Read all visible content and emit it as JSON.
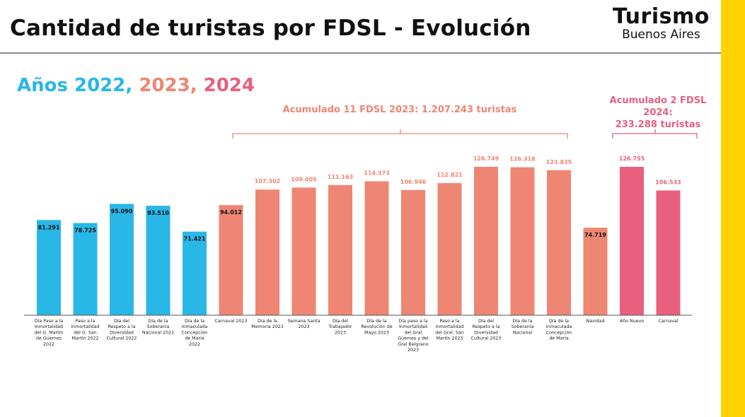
{
  "header": {
    "title": "Cantidad de turistas por FDSL - Evolución"
  },
  "logo": {
    "main": "Turismo",
    "sub": "Buenos Aires"
  },
  "legend": {
    "prefix": "Años ",
    "y2022": "2022, ",
    "y2023": "2023, ",
    "y2024": "2024"
  },
  "annotations": {
    "acc_2023": "Acumulado 11 FDSL 2023: 1.207.243 turistas",
    "acc_2024_line1": "Acumulado 2 FDSL 2024:",
    "acc_2024_line2": "233.288 turistas"
  },
  "colors": {
    "y2022": "#29b7e8",
    "y2023": "#ee8673",
    "y2024": "#e8607e",
    "accent": "#ffd200"
  },
  "chart_data": {
    "type": "bar",
    "title": "Cantidad de turistas por FDSL - Evolución",
    "xlabel": "",
    "ylabel": "",
    "ylim": [
      0,
      130000
    ],
    "categories": [
      [
        "Día Paso a la",
        "Inmortalidad",
        "del G. Martín",
        "de Güemes",
        "2022"
      ],
      [
        "Paso a la",
        "Inmortalidad",
        "del G. San",
        "Martín 2022"
      ],
      [
        "Día del",
        "Respeto a la",
        "Diversidad",
        "Cultural 2022"
      ],
      [
        "Día de la",
        "Soberanía",
        "Nacional 2022"
      ],
      [
        "Día de la",
        "Inmaculada",
        "Concepción",
        "de María",
        "2022"
      ],
      [
        "Carnaval 2023"
      ],
      [
        "Día de la",
        "Memoria 2023"
      ],
      [
        "Semana Santa",
        "2023"
      ],
      [
        "Día del",
        "Trabajador",
        "2023"
      ],
      [
        "Día de la",
        "Revolución de",
        "Mayo 2023"
      ],
      [
        "Día paso a la",
        "Inmortalidad",
        "del Gral",
        "Güemes y del",
        "Gral Belgrano",
        "2023"
      ],
      [
        "Paso a la",
        "inmortalidad",
        "del Gral. San",
        "Martín 2023"
      ],
      [
        "Día del",
        "Respeto a la",
        "Diversidad",
        "Cultural 2023"
      ],
      [
        "Día de la",
        "Soberanía",
        "Nacional"
      ],
      [
        "Día de la",
        "Inmaculada",
        "Concepción",
        "de María"
      ],
      [
        "Navidad"
      ],
      [
        "Año Nuevo"
      ],
      [
        "Carnaval"
      ]
    ],
    "values": [
      81291,
      78725,
      95090,
      93510,
      71421,
      94012,
      107302,
      109005,
      111163,
      114373,
      106946,
      112821,
      126749,
      126318,
      123835,
      74719,
      126755,
      106533
    ],
    "labels": [
      "81.291",
      "78.725",
      "95.090",
      "93.510",
      "71.421",
      "94.012",
      "107.302",
      "109.005",
      "111.163",
      "114.373",
      "106.946",
      "112.821",
      "126.749",
      "126.318",
      "123.835",
      "74.719",
      "126.755",
      "106.533"
    ],
    "years": [
      "2022",
      "2022",
      "2022",
      "2022",
      "2022",
      "2023",
      "2023",
      "2023",
      "2023",
      "2023",
      "2023",
      "2023",
      "2023",
      "2023",
      "2023",
      "2023",
      "2024",
      "2024"
    ],
    "label_inside": [
      true,
      true,
      true,
      true,
      true,
      true,
      false,
      false,
      false,
      false,
      false,
      false,
      false,
      false,
      false,
      true,
      false,
      false
    ],
    "series": [
      {
        "name": "2022",
        "color": "#29b7e8"
      },
      {
        "name": "2023",
        "color": "#ee8673"
      },
      {
        "name": "2024",
        "color": "#e8607e"
      }
    ]
  }
}
